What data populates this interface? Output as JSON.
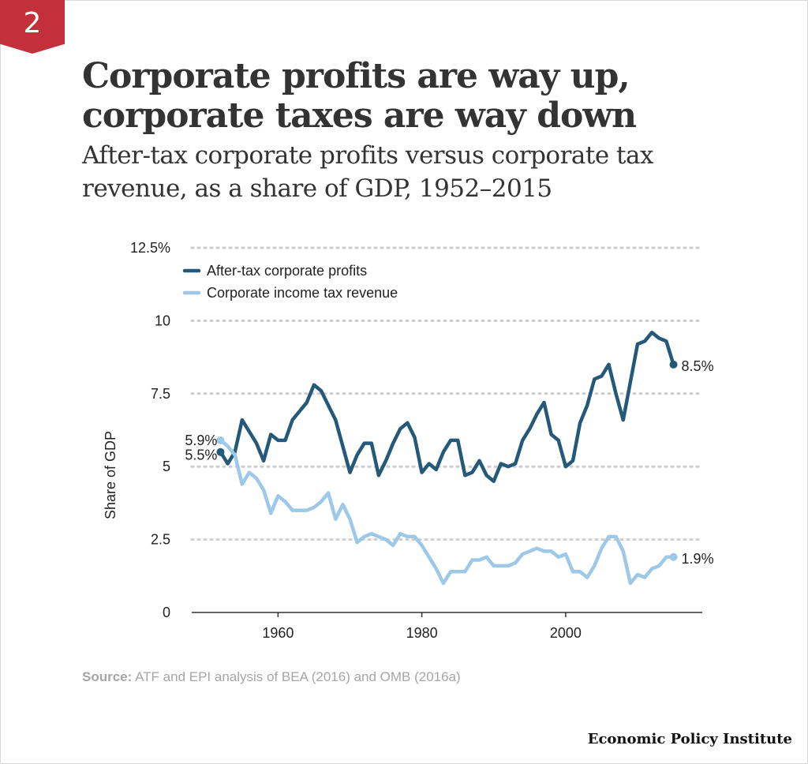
{
  "badge": "2",
  "title": "Corporate profits are way up, corporate taxes are way down",
  "subtitle": "After-tax corporate profits versus corporate tax revenue, as a share of GDP, 1952–2015",
  "source": {
    "label": "Source:",
    "text": "ATF and EPI analysis of BEA (2016) and OMB (2016a)"
  },
  "publisher": "Economic Policy Institute",
  "colors": {
    "profits": "#24597a",
    "tax": "#9dc8e8",
    "grid": "#cccccc"
  },
  "chart_data": {
    "type": "line",
    "ylabel": "Share of GDP",
    "xlabel": "",
    "ylim": [
      0,
      12.5
    ],
    "xlim": [
      1948,
      2019
    ],
    "yticks": [
      0,
      2.5,
      5,
      7.5,
      10,
      12.5
    ],
    "ytick_labels": [
      "0",
      "2.5",
      "5",
      "7.5",
      "10",
      "12.5%"
    ],
    "xticks": [
      1960,
      1980,
      2000
    ],
    "xtick_labels": [
      "1960",
      "1980",
      "2000"
    ],
    "grid": "horizontal dotted",
    "legend_position": "top-left",
    "x": [
      1952,
      1953,
      1954,
      1955,
      1956,
      1957,
      1958,
      1959,
      1960,
      1961,
      1962,
      1963,
      1964,
      1965,
      1966,
      1967,
      1968,
      1969,
      1970,
      1971,
      1972,
      1973,
      1974,
      1975,
      1976,
      1977,
      1978,
      1979,
      1980,
      1981,
      1982,
      1983,
      1984,
      1985,
      1986,
      1987,
      1988,
      1989,
      1990,
      1991,
      1992,
      1993,
      1994,
      1995,
      1996,
      1997,
      1998,
      1999,
      2000,
      2001,
      2002,
      2003,
      2004,
      2005,
      2006,
      2007,
      2008,
      2009,
      2010,
      2011,
      2012,
      2013,
      2014,
      2015
    ],
    "series": [
      {
        "name": "After-tax corporate profits",
        "color": "#24597a",
        "end_label": "8.5%",
        "start_label": "5.5%",
        "values": [
          5.5,
          5.1,
          5.5,
          6.6,
          6.2,
          5.8,
          5.2,
          6.1,
          5.9,
          5.9,
          6.6,
          6.9,
          7.2,
          7.8,
          7.6,
          7.1,
          6.6,
          5.7,
          4.8,
          5.4,
          5.8,
          5.8,
          4.7,
          5.2,
          5.8,
          6.3,
          6.5,
          6.0,
          4.8,
          5.1,
          4.9,
          5.5,
          5.9,
          5.9,
          4.7,
          4.8,
          5.2,
          4.7,
          4.5,
          5.1,
          5.0,
          5.1,
          5.9,
          6.3,
          6.8,
          7.2,
          6.1,
          5.9,
          5.0,
          5.2,
          6.5,
          7.1,
          8.0,
          8.1,
          8.5,
          7.5,
          6.6,
          7.9,
          9.2,
          9.3,
          9.6,
          9.4,
          9.3,
          8.5
        ]
      },
      {
        "name": "Corporate income tax revenue",
        "color": "#9dc8e8",
        "end_label": "1.9%",
        "start_label": "5.9%",
        "values": [
          5.9,
          5.7,
          5.4,
          4.4,
          4.8,
          4.6,
          4.2,
          3.4,
          4.0,
          3.8,
          3.5,
          3.5,
          3.5,
          3.6,
          3.8,
          4.1,
          3.2,
          3.7,
          3.2,
          2.4,
          2.6,
          2.7,
          2.6,
          2.5,
          2.3,
          2.7,
          2.6,
          2.6,
          2.3,
          1.9,
          1.5,
          1.0,
          1.4,
          1.4,
          1.4,
          1.8,
          1.8,
          1.9,
          1.6,
          1.6,
          1.6,
          1.7,
          2.0,
          2.1,
          2.2,
          2.1,
          2.1,
          1.9,
          2.0,
          1.4,
          1.4,
          1.2,
          1.6,
          2.2,
          2.6,
          2.6,
          2.1,
          1.0,
          1.3,
          1.2,
          1.5,
          1.6,
          1.9,
          1.9
        ]
      }
    ]
  }
}
